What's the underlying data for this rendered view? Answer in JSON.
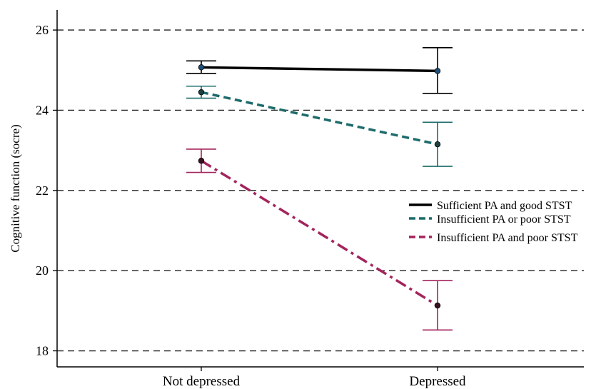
{
  "chart_data": {
    "type": "line",
    "categories": [
      "Not depressed",
      "Depressed"
    ],
    "ylabel": "Cognitive function (socre)",
    "xlabel": "",
    "ylim": [
      17.6,
      26.5
    ],
    "yticks": [
      18,
      20,
      22,
      24,
      26
    ],
    "grid": "horizontal dashed",
    "legend_position": "right",
    "series": [
      {
        "name": "Sufficient PA and good STST",
        "color": "#000000",
        "dash": "solid",
        "values": [
          25.07,
          24.98
        ],
        "ci_low": [
          24.92,
          24.42
        ],
        "ci_high": [
          25.23,
          25.56
        ],
        "marker_color": "#1f4e79"
      },
      {
        "name": "Insufficient PA or poor STST",
        "color": "#1d6b6b",
        "dash": "dashed",
        "values": [
          24.45,
          23.15
        ],
        "ci_low": [
          24.3,
          22.6
        ],
        "ci_high": [
          24.6,
          23.7
        ],
        "marker_color": "#1d4040"
      },
      {
        "name": "Insufficient PA and poor STST",
        "color": "#a3245c",
        "dash": "dashdot",
        "values": [
          22.74,
          19.13
        ],
        "ci_low": [
          22.45,
          18.52
        ],
        "ci_high": [
          23.03,
          19.75
        ],
        "marker_color": "#3a1020"
      }
    ]
  }
}
